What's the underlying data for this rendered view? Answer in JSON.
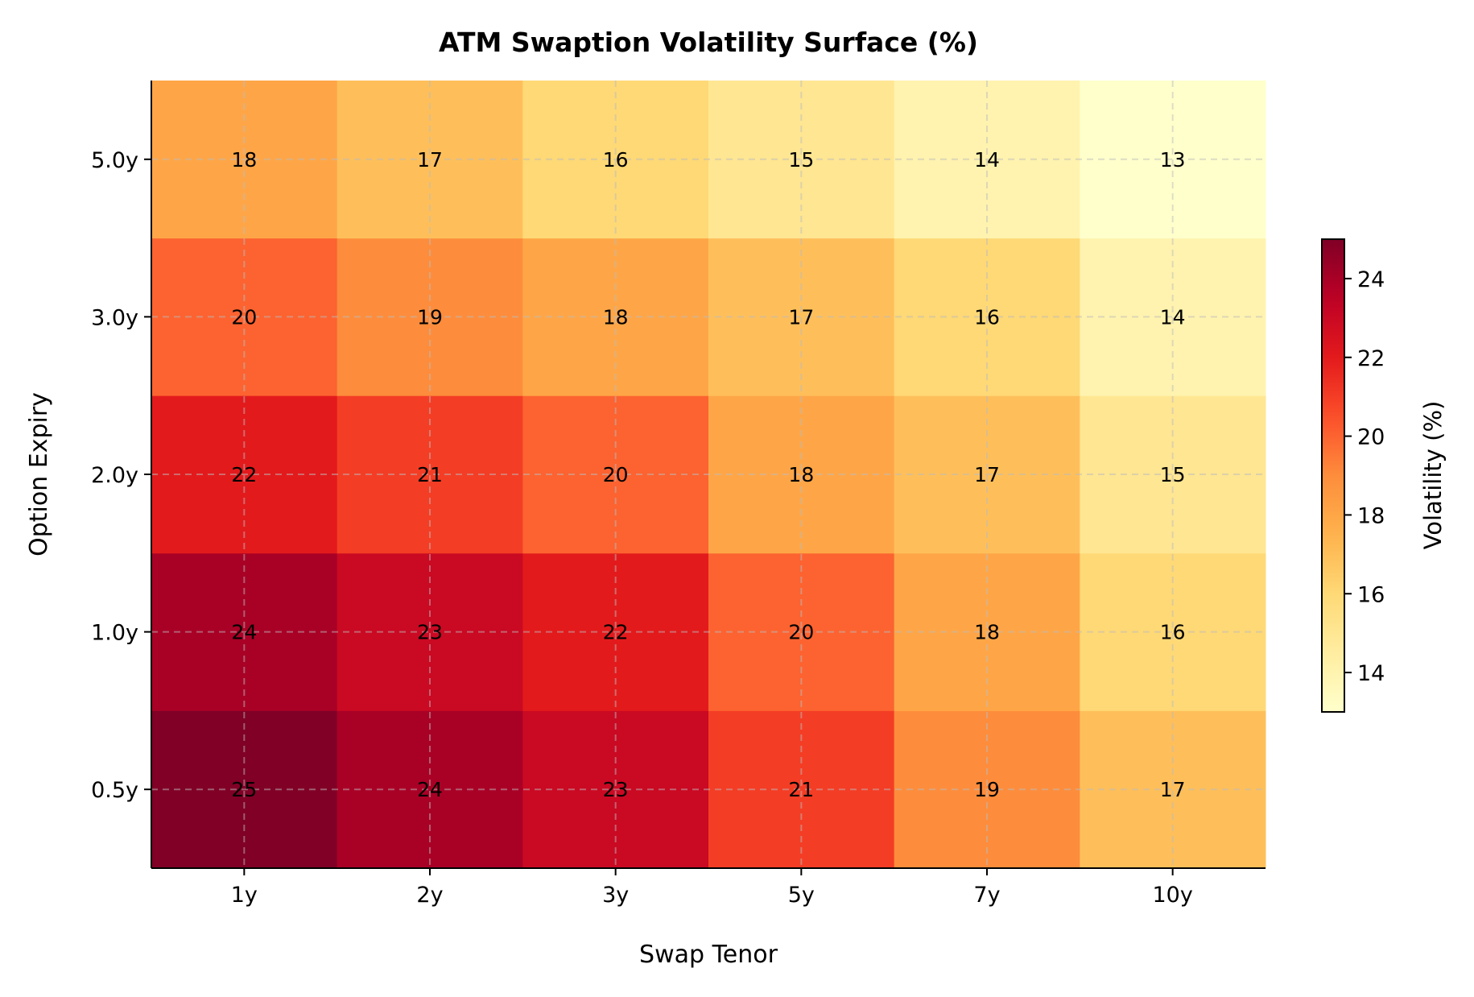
{
  "chart_data": {
    "type": "heatmap",
    "title": "ATM Swaption Volatility Surface (%)",
    "xlabel": "Swap Tenor",
    "ylabel": "Option Expiry",
    "x_categories": [
      "1y",
      "2y",
      "3y",
      "5y",
      "7y",
      "10y"
    ],
    "y_categories": [
      "0.5y",
      "1.0y",
      "2.0y",
      "3.0y",
      "5.0y"
    ],
    "values": [
      [
        25,
        24,
        23,
        21,
        19,
        17
      ],
      [
        24,
        23,
        22,
        20,
        18,
        16
      ],
      [
        22,
        21,
        20,
        18,
        17,
        15
      ],
      [
        20,
        19,
        18,
        17,
        16,
        14
      ],
      [
        18,
        17,
        16,
        15,
        14,
        13
      ]
    ],
    "colormap": "YlOrRd",
    "color_range": [
      13,
      25
    ],
    "colorbar": {
      "label": "Volatility (%)",
      "ticks": [
        14,
        16,
        18,
        20,
        22,
        24
      ]
    },
    "grid": true,
    "annotations": true
  }
}
